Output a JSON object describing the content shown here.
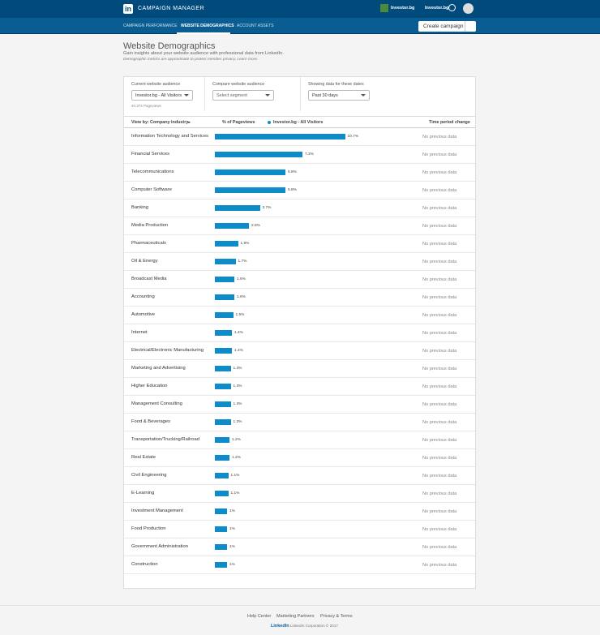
{
  "header": {
    "product": "CAMPAIGN MANAGER",
    "account": "Investor.bg",
    "company": "Investor.bg"
  },
  "nav": [
    "CAMPAIGN PERFORMANCE",
    "WEBSITE DEMOGRAPHICS",
    "ACCOUNT ASSETS"
  ],
  "create_button": "Create campaign",
  "page": {
    "title": "Website Demographics",
    "subtitle": "Gain insights about your website audience with professional data from LinkedIn.",
    "note": "Demographic metrics are approximate to protect member privacy. Learn more."
  },
  "filters": {
    "current_label": "Current website audience",
    "current_value": "Investor.bg - All Visitors",
    "pageviews": "40,374 Pageviews",
    "compare_label": "Compare website audience",
    "compare_value": "Select segment",
    "dates_label": "Showing data for these dates",
    "dates_value": "Past 30 days"
  },
  "table": {
    "view_by": "View by:",
    "dimension": "Company industry",
    "col_pct": "% of Pageviews",
    "legend": "Investor.bg - All Visitors",
    "col_change": "Time period change",
    "rows": [
      {
        "label": "Information Technology and Services",
        "value": 10.7,
        "value_label": "10.7%",
        "change": "No previous data"
      },
      {
        "label": "Financial Services",
        "value": 7.2,
        "value_label": "7.2%",
        "change": "No previous data"
      },
      {
        "label": "Telecommunications",
        "value": 5.8,
        "value_label": "5.8%",
        "change": "No previous data"
      },
      {
        "label": "Computer Software",
        "value": 5.8,
        "value_label": "5.8%",
        "change": "No previous data"
      },
      {
        "label": "Banking",
        "value": 3.7,
        "value_label": "3.7%",
        "change": "No previous data"
      },
      {
        "label": "Media Production",
        "value": 2.8,
        "value_label": "2.8%",
        "change": "No previous data"
      },
      {
        "label": "Pharmaceuticals",
        "value": 1.9,
        "value_label": "1.9%",
        "change": "No previous data"
      },
      {
        "label": "Oil & Energy",
        "value": 1.7,
        "value_label": "1.7%",
        "change": "No previous data"
      },
      {
        "label": "Broadcast Media",
        "value": 1.6,
        "value_label": "1.6%",
        "change": "No previous data"
      },
      {
        "label": "Accounting",
        "value": 1.6,
        "value_label": "1.6%",
        "change": "No previous data"
      },
      {
        "label": "Automotive",
        "value": 1.5,
        "value_label": "1.5%",
        "change": "No previous data"
      },
      {
        "label": "Internet",
        "value": 1.4,
        "value_label": "1.4%",
        "change": "No previous data"
      },
      {
        "label": "Electrical/Electronic Manufacturing",
        "value": 1.4,
        "value_label": "1.4%",
        "change": "No previous data"
      },
      {
        "label": "Marketing and Advertising",
        "value": 1.3,
        "value_label": "1.3%",
        "change": "No previous data"
      },
      {
        "label": "Higher Education",
        "value": 1.3,
        "value_label": "1.3%",
        "change": "No previous data"
      },
      {
        "label": "Management Consulting",
        "value": 1.3,
        "value_label": "1.3%",
        "change": "No previous data"
      },
      {
        "label": "Food & Beverages",
        "value": 1.3,
        "value_label": "1.3%",
        "change": "No previous data"
      },
      {
        "label": "Transportation/Trucking/Railroad",
        "value": 1.2,
        "value_label": "1.2%",
        "change": "No previous data"
      },
      {
        "label": "Real Estate",
        "value": 1.2,
        "value_label": "1.2%",
        "change": "No previous data"
      },
      {
        "label": "Civil Engineering",
        "value": 1.1,
        "value_label": "1.1%",
        "change": "No previous data"
      },
      {
        "label": "E-Learning",
        "value": 1.1,
        "value_label": "1.1%",
        "change": "No previous data"
      },
      {
        "label": "Investment Management",
        "value": 1,
        "value_label": "1%",
        "change": "No previous data"
      },
      {
        "label": "Food Production",
        "value": 1,
        "value_label": "1%",
        "change": "No previous data"
      },
      {
        "label": "Government Administration",
        "value": 1,
        "value_label": "1%",
        "change": "No previous data"
      },
      {
        "label": "Construction",
        "value": 1,
        "value_label": "1%",
        "change": "No previous data"
      }
    ]
  },
  "footer": {
    "links": [
      "Help Center",
      "Marketing Partners",
      "Privacy & Terms"
    ],
    "logo": "LinkedIn",
    "copyright": "LinkedIn Corporation © 2017"
  }
}
